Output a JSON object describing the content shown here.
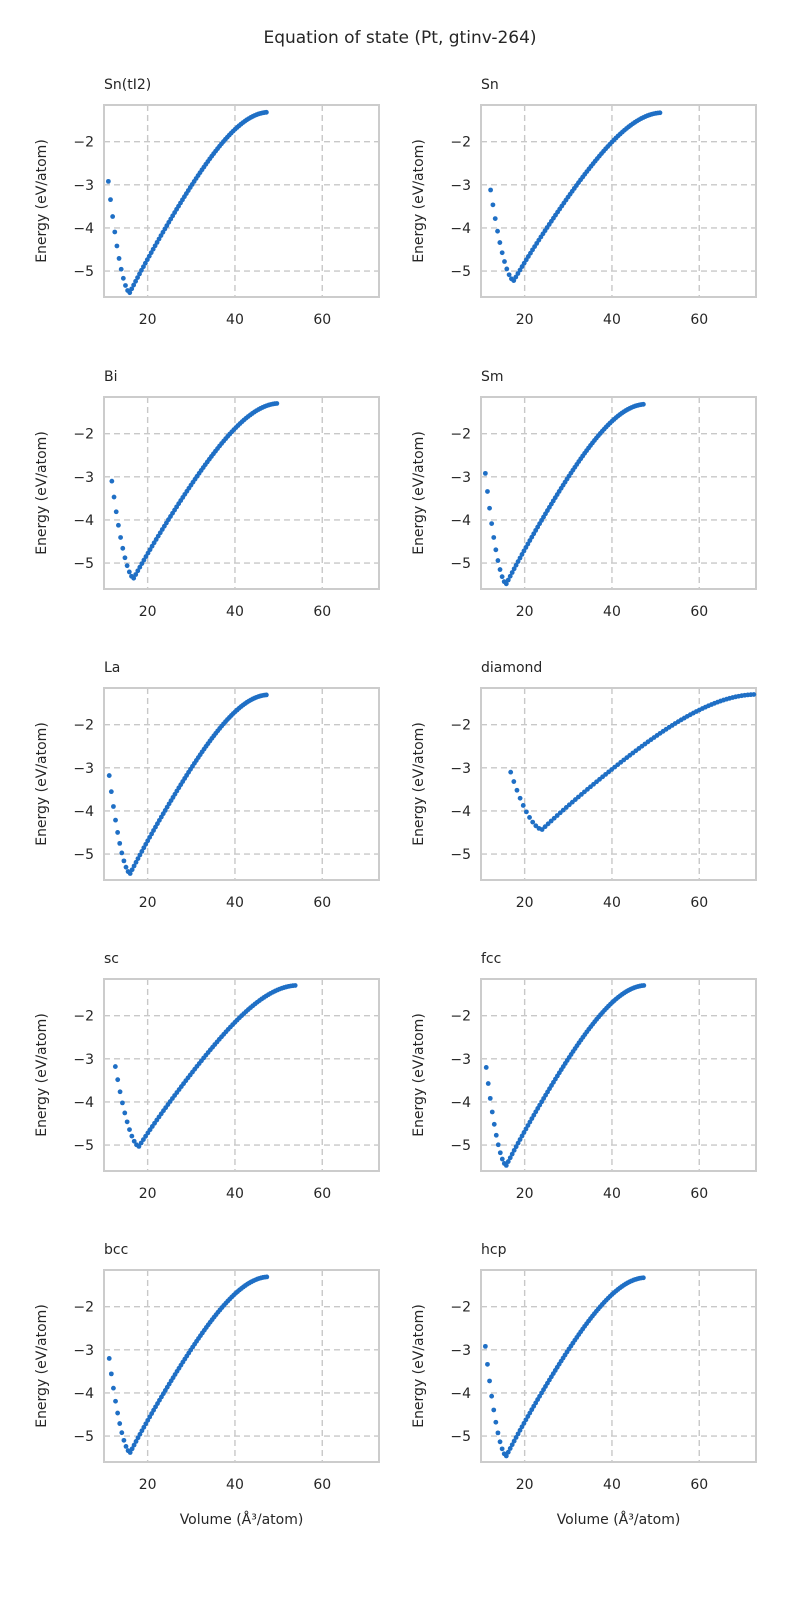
{
  "figure": {
    "title": "Equation of state (Pt, gtinv-264)"
  },
  "colors": {
    "points": "#1f6fc5",
    "grid": "#c8c8c8",
    "frame": "#cccccc"
  },
  "chart_data": [
    {
      "type": "scatter",
      "title": "Sn(tI2)",
      "ylabel": "Energy (eV/atom)",
      "xlabel": "",
      "xlim": [
        10,
        73
      ],
      "ylim": [
        -5.6,
        -1.15
      ],
      "xticks": [
        20,
        40,
        60
      ],
      "yticks": [
        -2,
        -3,
        -4,
        -5
      ],
      "grid": true,
      "minimum": {
        "v": 15.9,
        "e": -5.5
      },
      "v_start": 11.0,
      "e_start": -2.92,
      "v_end": 47.2,
      "e_end": -1.32
    },
    {
      "type": "scatter",
      "title": "Sn",
      "ylabel": "Energy (eV/atom)",
      "xlabel": "",
      "xlim": [
        10,
        73
      ],
      "ylim": [
        -5.6,
        -1.15
      ],
      "xticks": [
        20,
        40,
        60
      ],
      "yticks": [
        -2,
        -3,
        -4,
        -5
      ],
      "grid": true,
      "minimum": {
        "v": 17.5,
        "e": -5.22
      },
      "v_start": 12.2,
      "e_start": -3.12,
      "v_end": 51.0,
      "e_end": -1.33
    },
    {
      "type": "scatter",
      "title": "Bi",
      "ylabel": "Energy (eV/atom)",
      "xlabel": "",
      "xlim": [
        10,
        73
      ],
      "ylim": [
        -5.6,
        -1.15
      ],
      "xticks": [
        20,
        40,
        60
      ],
      "yticks": [
        -2,
        -3,
        -4,
        -5
      ],
      "grid": true,
      "minimum": {
        "v": 16.8,
        "e": -5.35
      },
      "v_start": 11.8,
      "e_start": -3.1,
      "v_end": 49.6,
      "e_end": -1.3
    },
    {
      "type": "scatter",
      "title": "Sm",
      "ylabel": "Energy (eV/atom)",
      "xlabel": "",
      "xlim": [
        10,
        73
      ],
      "ylim": [
        -5.6,
        -1.15
      ],
      "xticks": [
        20,
        40,
        60
      ],
      "yticks": [
        -2,
        -3,
        -4,
        -5
      ],
      "grid": true,
      "minimum": {
        "v": 15.8,
        "e": -5.48
      },
      "v_start": 11.0,
      "e_start": -2.92,
      "v_end": 47.2,
      "e_end": -1.32
    },
    {
      "type": "scatter",
      "title": "La",
      "ylabel": "Energy (eV/atom)",
      "xlabel": "",
      "xlim": [
        10,
        73
      ],
      "ylim": [
        -5.6,
        -1.15
      ],
      "xticks": [
        20,
        40,
        60
      ],
      "yticks": [
        -2,
        -3,
        -4,
        -5
      ],
      "grid": true,
      "minimum": {
        "v": 16.0,
        "e": -5.45
      },
      "v_start": 11.2,
      "e_start": -3.18,
      "v_end": 47.2,
      "e_end": -1.31
    },
    {
      "type": "scatter",
      "title": "diamond",
      "ylabel": "Energy (eV/atom)",
      "xlabel": "",
      "xlim": [
        10,
        73
      ],
      "ylim": [
        -5.6,
        -1.15
      ],
      "xticks": [
        20,
        40,
        60
      ],
      "yticks": [
        -2,
        -3,
        -4,
        -5
      ],
      "grid": true,
      "minimum": {
        "v": 24.0,
        "e": -4.43
      },
      "v_start": 16.8,
      "e_start": -3.1,
      "v_end": 72.5,
      "e_end": -1.3
    },
    {
      "type": "scatter",
      "title": "sc",
      "ylabel": "Energy (eV/atom)",
      "xlabel": "",
      "xlim": [
        10,
        73
      ],
      "ylim": [
        -5.6,
        -1.15
      ],
      "xticks": [
        20,
        40,
        60
      ],
      "yticks": [
        -2,
        -3,
        -4,
        -5
      ],
      "grid": true,
      "minimum": {
        "v": 18.0,
        "e": -5.03
      },
      "v_start": 12.6,
      "e_start": -3.18,
      "v_end": 53.8,
      "e_end": -1.3
    },
    {
      "type": "scatter",
      "title": "fcc",
      "ylabel": "Energy (eV/atom)",
      "xlabel": "",
      "xlim": [
        10,
        73
      ],
      "ylim": [
        -5.6,
        -1.15
      ],
      "xticks": [
        20,
        40,
        60
      ],
      "yticks": [
        -2,
        -3,
        -4,
        -5
      ],
      "grid": true,
      "minimum": {
        "v": 15.8,
        "e": -5.47
      },
      "v_start": 11.2,
      "e_start": -3.2,
      "v_end": 47.3,
      "e_end": -1.3
    },
    {
      "type": "scatter",
      "title": "bcc",
      "ylabel": "Energy (eV/atom)",
      "xlabel": "Volume (Å³/atom)",
      "xlim": [
        10,
        73
      ],
      "ylim": [
        -5.6,
        -1.15
      ],
      "xticks": [
        20,
        40,
        60
      ],
      "yticks": [
        -2,
        -3,
        -4,
        -5
      ],
      "grid": true,
      "minimum": {
        "v": 16.0,
        "e": -5.38
      },
      "v_start": 11.2,
      "e_start": -3.2,
      "v_end": 47.3,
      "e_end": -1.31
    },
    {
      "type": "scatter",
      "title": "hcp",
      "ylabel": "Energy (eV/atom)",
      "xlabel": "Volume (Å³/atom)",
      "xlim": [
        10,
        73
      ],
      "ylim": [
        -5.6,
        -1.15
      ],
      "xticks": [
        20,
        40,
        60
      ],
      "yticks": [
        -2,
        -3,
        -4,
        -5
      ],
      "grid": true,
      "minimum": {
        "v": 15.8,
        "e": -5.46
      },
      "v_start": 11.0,
      "e_start": -2.92,
      "v_end": 47.2,
      "e_end": -1.33
    }
  ]
}
